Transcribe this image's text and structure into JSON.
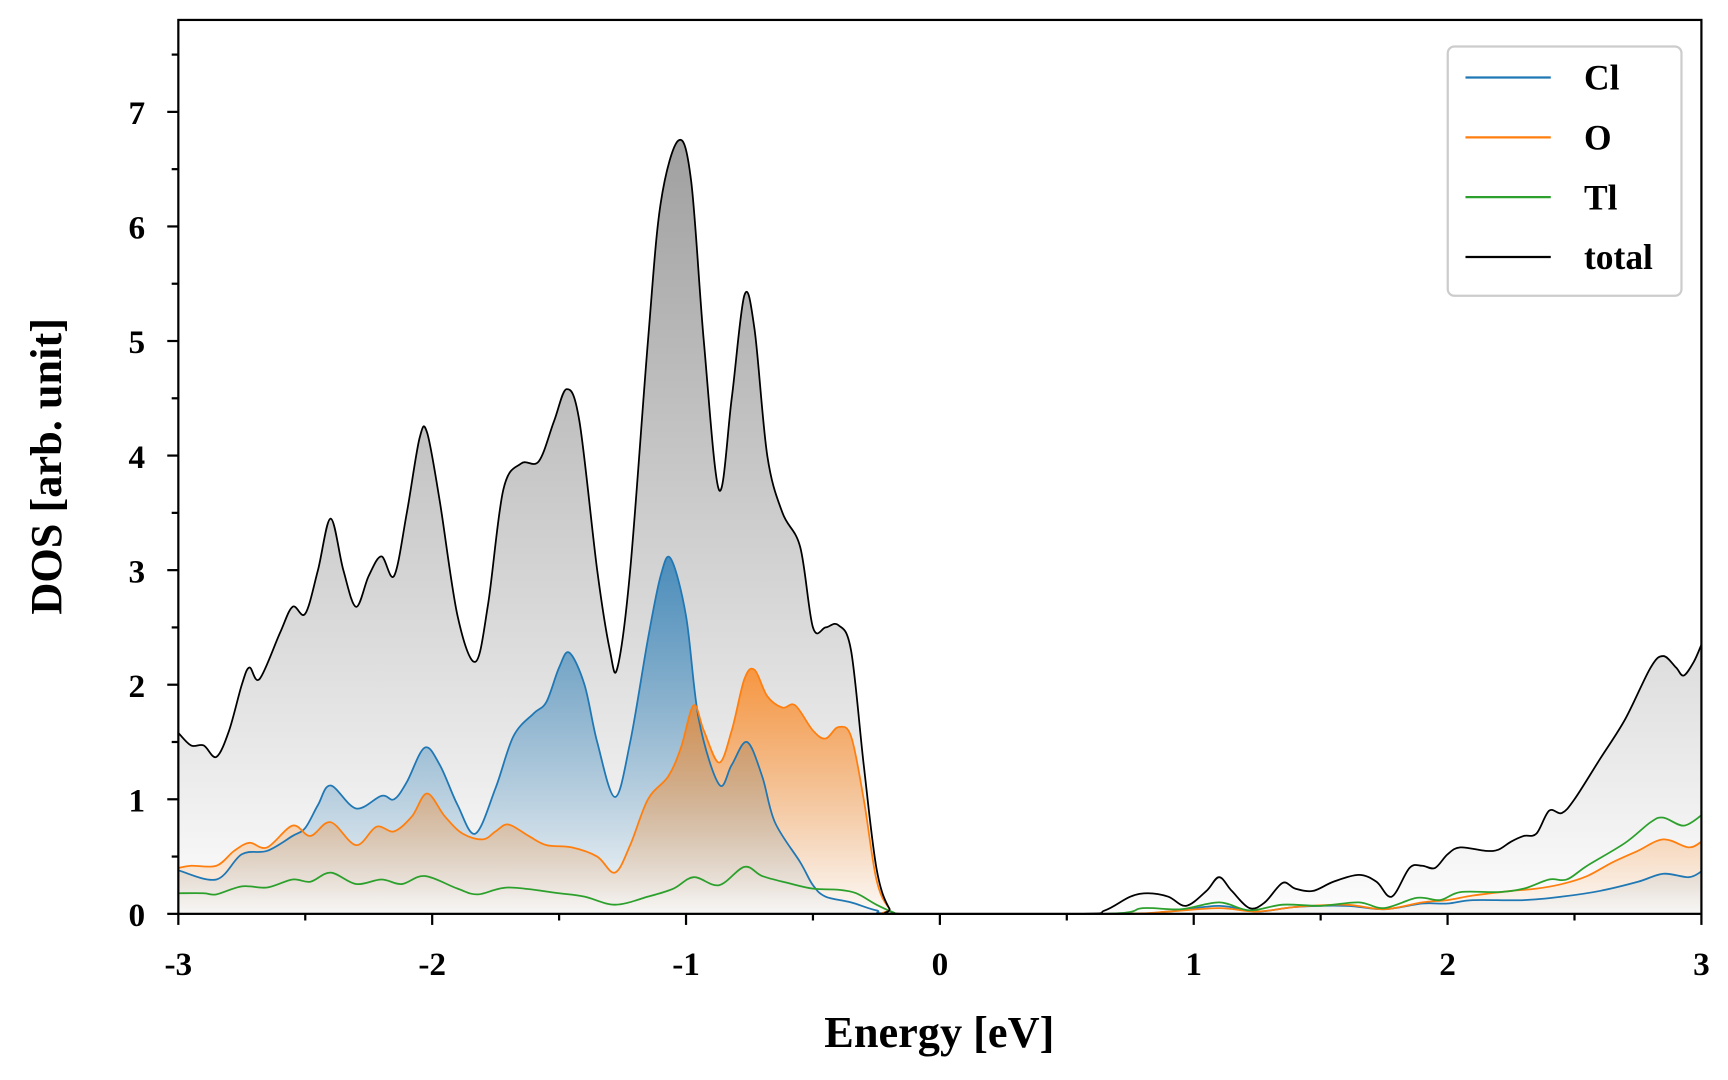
{
  "chart_data": {
    "type": "area",
    "title": "",
    "xlabel": "Energy [eV]",
    "ylabel": "DOS [arb. unit]",
    "xlim": [
      -3,
      3
    ],
    "ylim": [
      0,
      7.75
    ],
    "xticks": [
      -3,
      -2,
      -1,
      0,
      1,
      2,
      3
    ],
    "xtick_labels": [
      "-3",
      "-2",
      "-1",
      "0",
      "1",
      "2",
      "3"
    ],
    "yticks": [
      0,
      1,
      2,
      3,
      4,
      5,
      6,
      7
    ],
    "ytick_labels": [
      "0",
      "1",
      "2",
      "3",
      "4",
      "5",
      "6",
      "7"
    ],
    "grid": false,
    "legend_position": "top-right",
    "series": [
      {
        "name": "Cl",
        "color": "#1f77b4",
        "fill": true,
        "points": [
          [
            -3,
            0.38
          ],
          [
            -2.85,
            0.3
          ],
          [
            -2.75,
            0.52
          ],
          [
            -2.65,
            0.55
          ],
          [
            -2.55,
            0.68
          ],
          [
            -2.5,
            0.75
          ],
          [
            -2.45,
            0.95
          ],
          [
            -2.4,
            1.12
          ],
          [
            -2.3,
            0.92
          ],
          [
            -2.2,
            1.03
          ],
          [
            -2.15,
            1.0
          ],
          [
            -2.1,
            1.15
          ],
          [
            -2.03,
            1.45
          ],
          [
            -1.97,
            1.3
          ],
          [
            -1.9,
            0.95
          ],
          [
            -1.83,
            0.7
          ],
          [
            -1.75,
            1.1
          ],
          [
            -1.68,
            1.55
          ],
          [
            -1.6,
            1.75
          ],
          [
            -1.55,
            1.85
          ],
          [
            -1.5,
            2.15
          ],
          [
            -1.46,
            2.28
          ],
          [
            -1.4,
            2.0
          ],
          [
            -1.35,
            1.5
          ],
          [
            -1.28,
            1.02
          ],
          [
            -1.22,
            1.5
          ],
          [
            -1.15,
            2.4
          ],
          [
            -1.1,
            2.95
          ],
          [
            -1.06,
            3.1
          ],
          [
            -1.0,
            2.6
          ],
          [
            -0.95,
            1.7
          ],
          [
            -0.87,
            1.13
          ],
          [
            -0.82,
            1.3
          ],
          [
            -0.76,
            1.5
          ],
          [
            -0.7,
            1.2
          ],
          [
            -0.65,
            0.8
          ],
          [
            -0.55,
            0.45
          ],
          [
            -0.5,
            0.25
          ],
          [
            -0.45,
            0.15
          ],
          [
            -0.35,
            0.1
          ],
          [
            -0.25,
            0.03
          ],
          [
            -0.15,
            0
          ],
          [
            0.7,
            0
          ],
          [
            0.9,
            0.02
          ],
          [
            1.1,
            0.07
          ],
          [
            1.25,
            0.02
          ],
          [
            1.4,
            0.06
          ],
          [
            1.6,
            0.07
          ],
          [
            1.75,
            0.04
          ],
          [
            1.9,
            0.09
          ],
          [
            2.0,
            0.09
          ],
          [
            2.1,
            0.12
          ],
          [
            2.3,
            0.12
          ],
          [
            2.45,
            0.15
          ],
          [
            2.6,
            0.2
          ],
          [
            2.75,
            0.28
          ],
          [
            2.85,
            0.35
          ],
          [
            2.95,
            0.32
          ],
          [
            3.0,
            0.37
          ]
        ]
      },
      {
        "name": "O",
        "color": "#ff7f0e",
        "fill": true,
        "points": [
          [
            -3,
            0.4
          ],
          [
            -2.95,
            0.42
          ],
          [
            -2.85,
            0.42
          ],
          [
            -2.78,
            0.55
          ],
          [
            -2.72,
            0.62
          ],
          [
            -2.65,
            0.58
          ],
          [
            -2.55,
            0.77
          ],
          [
            -2.48,
            0.68
          ],
          [
            -2.4,
            0.8
          ],
          [
            -2.3,
            0.6
          ],
          [
            -2.22,
            0.76
          ],
          [
            -2.15,
            0.72
          ],
          [
            -2.08,
            0.85
          ],
          [
            -2.02,
            1.05
          ],
          [
            -1.95,
            0.85
          ],
          [
            -1.88,
            0.7
          ],
          [
            -1.8,
            0.65
          ],
          [
            -1.75,
            0.72
          ],
          [
            -1.7,
            0.78
          ],
          [
            -1.62,
            0.68
          ],
          [
            -1.55,
            0.6
          ],
          [
            -1.45,
            0.58
          ],
          [
            -1.35,
            0.5
          ],
          [
            -1.28,
            0.36
          ],
          [
            -1.22,
            0.6
          ],
          [
            -1.15,
            1.0
          ],
          [
            -1.07,
            1.2
          ],
          [
            -1.02,
            1.45
          ],
          [
            -0.97,
            1.82
          ],
          [
            -0.93,
            1.6
          ],
          [
            -0.87,
            1.32
          ],
          [
            -0.82,
            1.6
          ],
          [
            -0.77,
            2.05
          ],
          [
            -0.73,
            2.13
          ],
          [
            -0.68,
            1.9
          ],
          [
            -0.62,
            1.8
          ],
          [
            -0.57,
            1.82
          ],
          [
            -0.5,
            1.6
          ],
          [
            -0.45,
            1.53
          ],
          [
            -0.4,
            1.63
          ],
          [
            -0.35,
            1.55
          ],
          [
            -0.3,
            1.0
          ],
          [
            -0.25,
            0.3
          ],
          [
            -0.2,
            0.05
          ],
          [
            -0.15,
            0
          ],
          [
            0.7,
            0
          ],
          [
            0.9,
            0.02
          ],
          [
            1.1,
            0.05
          ],
          [
            1.25,
            0.02
          ],
          [
            1.4,
            0.06
          ],
          [
            1.6,
            0.08
          ],
          [
            1.75,
            0.04
          ],
          [
            1.9,
            0.1
          ],
          [
            2.0,
            0.12
          ],
          [
            2.1,
            0.16
          ],
          [
            2.25,
            0.2
          ],
          [
            2.35,
            0.22
          ],
          [
            2.45,
            0.26
          ],
          [
            2.55,
            0.33
          ],
          [
            2.65,
            0.45
          ],
          [
            2.75,
            0.55
          ],
          [
            2.85,
            0.65
          ],
          [
            2.95,
            0.58
          ],
          [
            3.0,
            0.63
          ]
        ]
      },
      {
        "name": "Tl",
        "color": "#2ca02c",
        "fill": false,
        "points": [
          [
            -3,
            0.18
          ],
          [
            -2.9,
            0.18
          ],
          [
            -2.85,
            0.17
          ],
          [
            -2.75,
            0.24
          ],
          [
            -2.65,
            0.23
          ],
          [
            -2.55,
            0.3
          ],
          [
            -2.48,
            0.28
          ],
          [
            -2.4,
            0.36
          ],
          [
            -2.3,
            0.26
          ],
          [
            -2.2,
            0.3
          ],
          [
            -2.12,
            0.26
          ],
          [
            -2.03,
            0.33
          ],
          [
            -1.9,
            0.22
          ],
          [
            -1.82,
            0.17
          ],
          [
            -1.7,
            0.23
          ],
          [
            -1.5,
            0.18
          ],
          [
            -1.4,
            0.15
          ],
          [
            -1.28,
            0.08
          ],
          [
            -1.15,
            0.15
          ],
          [
            -1.05,
            0.22
          ],
          [
            -0.97,
            0.32
          ],
          [
            -0.87,
            0.25
          ],
          [
            -0.77,
            0.41
          ],
          [
            -0.7,
            0.33
          ],
          [
            -0.6,
            0.27
          ],
          [
            -0.5,
            0.22
          ],
          [
            -0.4,
            0.21
          ],
          [
            -0.33,
            0.18
          ],
          [
            -0.25,
            0.08
          ],
          [
            -0.18,
            0.01
          ],
          [
            -0.15,
            0
          ],
          [
            0.65,
            0
          ],
          [
            0.8,
            0.05
          ],
          [
            0.95,
            0.04
          ],
          [
            1.1,
            0.1
          ],
          [
            1.22,
            0.03
          ],
          [
            1.35,
            0.08
          ],
          [
            1.5,
            0.07
          ],
          [
            1.65,
            0.1
          ],
          [
            1.75,
            0.05
          ],
          [
            1.88,
            0.14
          ],
          [
            1.97,
            0.12
          ],
          [
            2.05,
            0.19
          ],
          [
            2.2,
            0.19
          ],
          [
            2.3,
            0.22
          ],
          [
            2.4,
            0.3
          ],
          [
            2.47,
            0.3
          ],
          [
            2.55,
            0.42
          ],
          [
            2.7,
            0.62
          ],
          [
            2.8,
            0.8
          ],
          [
            2.85,
            0.84
          ],
          [
            2.93,
            0.77
          ],
          [
            3.0,
            0.86
          ]
        ]
      },
      {
        "name": "total",
        "color": "#000000",
        "fill": true,
        "points": [
          [
            -3,
            1.58
          ],
          [
            -2.95,
            1.47
          ],
          [
            -2.9,
            1.47
          ],
          [
            -2.85,
            1.37
          ],
          [
            -2.8,
            1.6
          ],
          [
            -2.75,
            2.0
          ],
          [
            -2.72,
            2.15
          ],
          [
            -2.68,
            2.05
          ],
          [
            -2.6,
            2.45
          ],
          [
            -2.55,
            2.68
          ],
          [
            -2.5,
            2.62
          ],
          [
            -2.45,
            3.0
          ],
          [
            -2.4,
            3.45
          ],
          [
            -2.35,
            3.0
          ],
          [
            -2.3,
            2.68
          ],
          [
            -2.25,
            2.95
          ],
          [
            -2.2,
            3.12
          ],
          [
            -2.15,
            2.95
          ],
          [
            -2.1,
            3.5
          ],
          [
            -2.05,
            4.15
          ],
          [
            -2.02,
            4.2
          ],
          [
            -1.97,
            3.6
          ],
          [
            -1.9,
            2.6
          ],
          [
            -1.83,
            2.2
          ],
          [
            -1.78,
            2.7
          ],
          [
            -1.72,
            3.7
          ],
          [
            -1.65,
            3.93
          ],
          [
            -1.58,
            3.95
          ],
          [
            -1.52,
            4.3
          ],
          [
            -1.47,
            4.58
          ],
          [
            -1.42,
            4.3
          ],
          [
            -1.35,
            3.0
          ],
          [
            -1.3,
            2.3
          ],
          [
            -1.27,
            2.15
          ],
          [
            -1.22,
            3.0
          ],
          [
            -1.15,
            5.0
          ],
          [
            -1.1,
            6.2
          ],
          [
            -1.03,
            6.75
          ],
          [
            -0.98,
            6.4
          ],
          [
            -0.93,
            5.0
          ],
          [
            -0.87,
            3.7
          ],
          [
            -0.82,
            4.5
          ],
          [
            -0.77,
            5.4
          ],
          [
            -0.73,
            5.1
          ],
          [
            -0.68,
            4.0
          ],
          [
            -0.62,
            3.5
          ],
          [
            -0.55,
            3.2
          ],
          [
            -0.5,
            2.5
          ],
          [
            -0.45,
            2.5
          ],
          [
            -0.4,
            2.52
          ],
          [
            -0.35,
            2.3
          ],
          [
            -0.3,
            1.3
          ],
          [
            -0.25,
            0.4
          ],
          [
            -0.2,
            0.05
          ],
          [
            -0.15,
            0
          ],
          [
            0.55,
            0
          ],
          [
            0.65,
            0.03
          ],
          [
            0.75,
            0.15
          ],
          [
            0.82,
            0.18
          ],
          [
            0.9,
            0.15
          ],
          [
            0.97,
            0.07
          ],
          [
            1.05,
            0.2
          ],
          [
            1.1,
            0.32
          ],
          [
            1.15,
            0.2
          ],
          [
            1.22,
            0.05
          ],
          [
            1.28,
            0.1
          ],
          [
            1.35,
            0.27
          ],
          [
            1.4,
            0.22
          ],
          [
            1.47,
            0.2
          ],
          [
            1.55,
            0.28
          ],
          [
            1.65,
            0.34
          ],
          [
            1.72,
            0.28
          ],
          [
            1.78,
            0.15
          ],
          [
            1.85,
            0.4
          ],
          [
            1.9,
            0.42
          ],
          [
            1.95,
            0.4
          ],
          [
            2.0,
            0.52
          ],
          [
            2.05,
            0.58
          ],
          [
            2.15,
            0.55
          ],
          [
            2.2,
            0.56
          ],
          [
            2.25,
            0.63
          ],
          [
            2.3,
            0.68
          ],
          [
            2.35,
            0.7
          ],
          [
            2.4,
            0.9
          ],
          [
            2.45,
            0.88
          ],
          [
            2.5,
            1.0
          ],
          [
            2.6,
            1.35
          ],
          [
            2.7,
            1.7
          ],
          [
            2.8,
            2.15
          ],
          [
            2.85,
            2.25
          ],
          [
            2.9,
            2.15
          ],
          [
            2.93,
            2.08
          ],
          [
            2.97,
            2.2
          ],
          [
            3.0,
            2.35
          ]
        ]
      }
    ]
  }
}
